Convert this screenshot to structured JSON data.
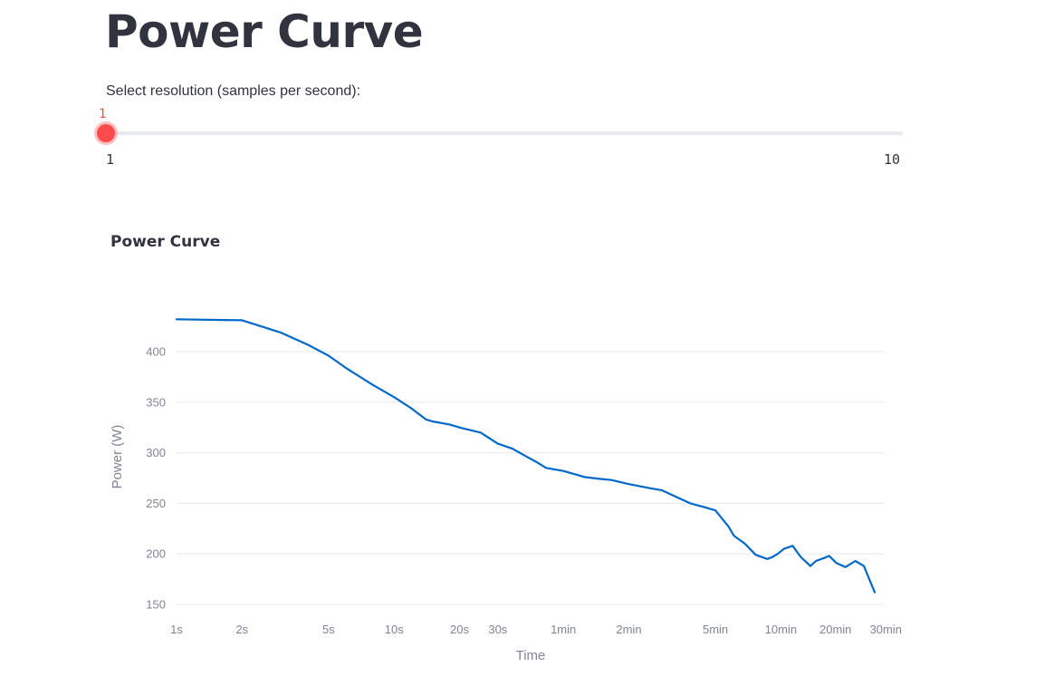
{
  "page": {
    "title": "Power Curve"
  },
  "slider": {
    "label": "Select resolution (samples per second):",
    "value": "1",
    "min_label": "1",
    "max_label": "10",
    "min": 1,
    "max": 10,
    "current": 1,
    "accent_color": "#ff4b4b"
  },
  "chart_data": {
    "type": "line",
    "title": "Power Curve",
    "xlabel": "Time",
    "ylabel": "Power (W)",
    "x_scale": "log",
    "x_unit": "seconds",
    "xlim": [
      1,
      1800
    ],
    "ylim": [
      140,
      440
    ],
    "grid": true,
    "line_color": "#0068c9",
    "x_ticks": [
      {
        "value": 1,
        "label": "1s"
      },
      {
        "value": 2,
        "label": "2s"
      },
      {
        "value": 5,
        "label": "5s"
      },
      {
        "value": 10,
        "label": "10s"
      },
      {
        "value": 20,
        "label": "20s"
      },
      {
        "value": 30,
        "label": "30s"
      },
      {
        "value": 60,
        "label": "1min"
      },
      {
        "value": 120,
        "label": "2min"
      },
      {
        "value": 300,
        "label": "5min"
      },
      {
        "value": 600,
        "label": "10min"
      },
      {
        "value": 1200,
        "label": "20min"
      },
      {
        "value": 1800,
        "label": "30min"
      }
    ],
    "y_ticks": [
      {
        "value": 150,
        "label": "150"
      },
      {
        "value": 200,
        "label": "200"
      },
      {
        "value": 250,
        "label": "250"
      },
      {
        "value": 300,
        "label": "300"
      },
      {
        "value": 350,
        "label": "350"
      },
      {
        "value": 400,
        "label": "400"
      }
    ],
    "x": [
      1,
      2,
      3,
      4,
      5,
      6,
      8,
      10,
      12,
      14,
      15,
      18,
      20,
      25,
      30,
      35,
      40,
      45,
      50,
      60,
      70,
      75,
      90,
      100,
      120,
      150,
      170,
      200,
      230,
      270,
      300,
      345,
      365,
      410,
      460,
      520,
      550,
      580,
      620,
      680,
      740,
      820,
      870,
      950,
      1000,
      1080,
      1190,
      1320,
      1445,
      1620
    ],
    "y": [
      432,
      431,
      419,
      407,
      396,
      384,
      367,
      355,
      344,
      333,
      331,
      328,
      325,
      320,
      309,
      304,
      297,
      291,
      285,
      282,
      278,
      276,
      274,
      273,
      269,
      265,
      263,
      256,
      250,
      246,
      243,
      227,
      218,
      210,
      199,
      195,
      197,
      200,
      205,
      208,
      197,
      188,
      193,
      196,
      198,
      191,
      187,
      193,
      188,
      162
    ]
  }
}
